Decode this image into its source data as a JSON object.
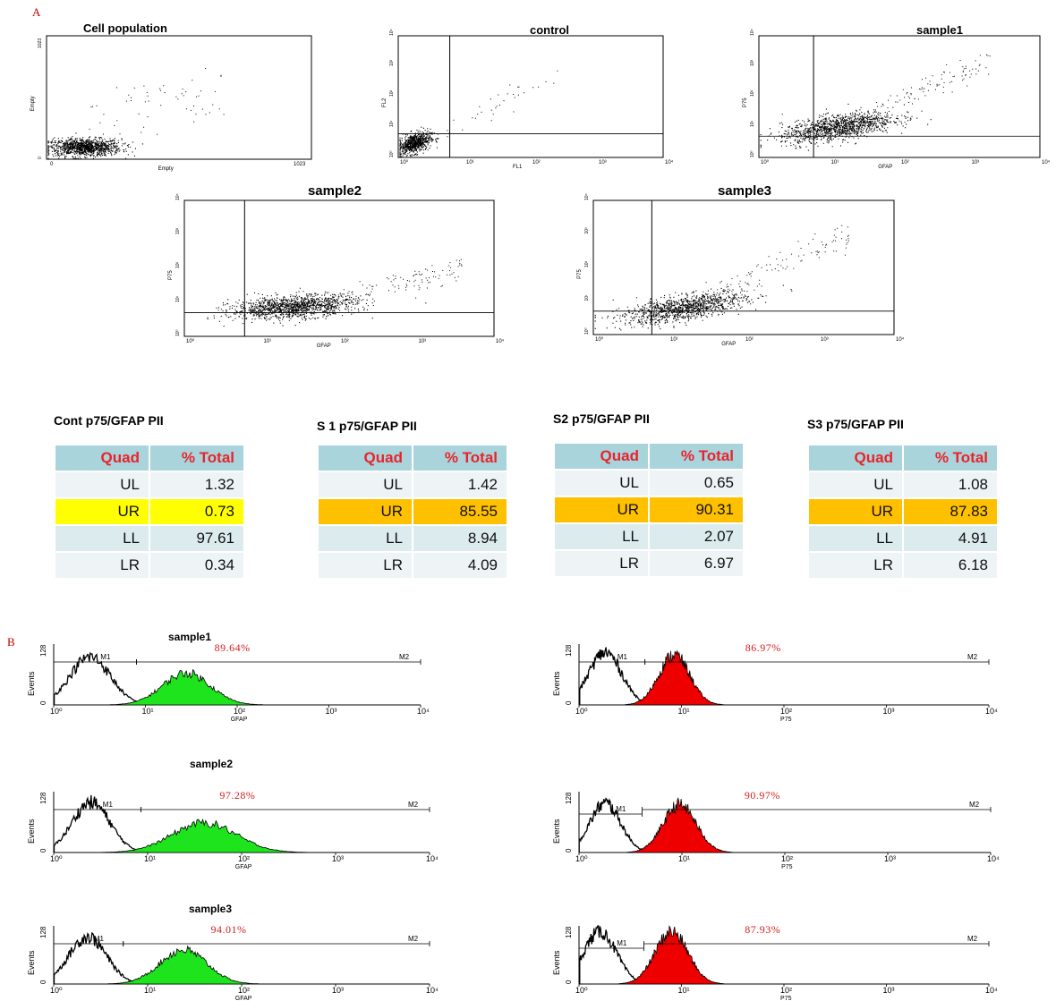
{
  "panel_labels": {
    "a": "A",
    "b": "B"
  },
  "colors": {
    "gfap_fill": "#1ee41e",
    "p75_fill": "#ee0000",
    "pct_text": "#d02020",
    "table_header_bg": "#a9d4dc",
    "table_header_text": "#e8242b",
    "ur_highlight_control": "#ffff00",
    "ur_highlight_samples": "#ffc000"
  },
  "chart_data": [
    {
      "type": "scatter",
      "title": "Cell population",
      "xlabel": "Empty",
      "ylabel": "Empty",
      "xlim": [
        0,
        1023
      ],
      "ylim": [
        0,
        1023
      ],
      "x_ticks": [
        "0",
        "1023"
      ],
      "y_ticks": [
        "0",
        "1023"
      ],
      "dense_cluster": {
        "x": [
          20,
          300
        ],
        "y": [
          40,
          200
        ]
      }
    },
    {
      "type": "scatter",
      "title": "control",
      "xlabel": "FL1",
      "ylabel": "FL2",
      "scale": "log",
      "xlim": [
        1,
        10000
      ],
      "ylim": [
        1,
        10000
      ],
      "x_ticks": [
        "10⁰",
        "10¹",
        "10²",
        "10³",
        "10⁴"
      ],
      "y_ticks": [
        "10⁰",
        "10¹",
        "10²",
        "10³",
        "10⁴"
      ],
      "quadrant_gate": {
        "x": 6,
        "y": 6
      }
    },
    {
      "type": "scatter",
      "title": "sample1",
      "xlabel": "GFAP",
      "ylabel": "P75",
      "scale": "log",
      "xlim": [
        1,
        10000
      ],
      "ylim": [
        1,
        10000
      ],
      "x_ticks": [
        "10⁰",
        "10¹",
        "10²",
        "10³",
        "10⁴"
      ],
      "y_ticks": [
        "10⁰",
        "10¹",
        "10²",
        "10³",
        "10⁴"
      ],
      "quadrant_gate": {
        "x": 6,
        "y": 5
      }
    },
    {
      "type": "scatter",
      "title": "sample2",
      "xlabel": "GFAP",
      "ylabel": "P75",
      "scale": "log",
      "xlim": [
        1,
        10000
      ],
      "ylim": [
        1,
        10000
      ],
      "x_ticks": [
        "10⁰",
        "10¹",
        "10²",
        "10³",
        "10⁴"
      ],
      "y_ticks": [
        "10⁰",
        "10¹",
        "10²",
        "10³",
        "10⁴"
      ],
      "quadrant_gate": {
        "x": 6,
        "y": 5
      }
    },
    {
      "type": "scatter",
      "title": "sample3",
      "xlabel": "GFAP",
      "ylabel": "P75",
      "scale": "log",
      "xlim": [
        1,
        10000
      ],
      "ylim": [
        1,
        10000
      ],
      "x_ticks": [
        "10⁰",
        "10¹",
        "10²",
        "10³",
        "10⁴"
      ],
      "y_ticks": [
        "10⁰",
        "10¹",
        "10²",
        "10³",
        "10⁴"
      ],
      "quadrant_gate": {
        "x": 6,
        "y": 5
      }
    },
    {
      "type": "table",
      "caption": "Cont p75/GFAP PII",
      "columns": [
        "Quad",
        "% Total"
      ],
      "rows": [
        [
          "UL",
          "1.32"
        ],
        [
          "UR",
          "0.73"
        ],
        [
          "LL",
          "97.61"
        ],
        [
          "LR",
          "0.34"
        ]
      ]
    },
    {
      "type": "table",
      "caption": "S 1 p75/GFAP PII",
      "columns": [
        "Quad",
        "% Total"
      ],
      "rows": [
        [
          "UL",
          "1.42"
        ],
        [
          "UR",
          "85.55"
        ],
        [
          "LL",
          "8.94"
        ],
        [
          "LR",
          "4.09"
        ]
      ]
    },
    {
      "type": "table",
      "caption": "S2 p75/GFAP PII",
      "columns": [
        "Quad",
        "% Total"
      ],
      "rows": [
        [
          "UL",
          "0.65"
        ],
        [
          "UR",
          "90.31"
        ],
        [
          "LL",
          "2.07"
        ],
        [
          "LR",
          "6.97"
        ]
      ]
    },
    {
      "type": "table",
      "caption": "S3 p75/GFAP PII",
      "columns": [
        "Quad",
        "% Total"
      ],
      "rows": [
        [
          "UL",
          "1.08"
        ],
        [
          "UR",
          "87.83"
        ],
        [
          "LL",
          "4.91"
        ],
        [
          "LR",
          "6.18"
        ]
      ]
    },
    {
      "type": "area",
      "title": "sample1",
      "xlabel": "GFAP",
      "ylabel": "Events",
      "scale": "log",
      "xlim": [
        1,
        10000
      ],
      "ylim": [
        0,
        128
      ],
      "x_ticks": [
        "10⁰",
        "10¹",
        "10²",
        "10³",
        "10⁴"
      ],
      "y_ticks": [
        "0",
        "128"
      ],
      "markers": [
        {
          "name": "M1",
          "from": 1,
          "to": 8
        },
        {
          "name": "M2",
          "from": 8,
          "to": 10000
        }
      ],
      "percent": "89.64%",
      "series": [
        {
          "fill": "none",
          "peak_x": 2.5,
          "peak_y": 105,
          "spread": 0.22
        },
        {
          "fill": "#1ee41e",
          "peak_x": 28,
          "peak_y": 70,
          "spread": 0.26
        }
      ]
    },
    {
      "type": "area",
      "title": "",
      "xlabel": "P75",
      "ylabel": "Events",
      "scale": "log",
      "xlim": [
        1,
        10000
      ],
      "ylim": [
        0,
        128
      ],
      "x_ticks": [
        "10⁰",
        "10¹",
        "10²",
        "10³",
        "10⁴"
      ],
      "y_ticks": [
        "0",
        "128"
      ],
      "markers": [
        {
          "name": "M1",
          "from": 1,
          "to": 4.4
        },
        {
          "name": "M2",
          "from": 4.4,
          "to": 10000
        }
      ],
      "percent": "86.97%",
      "series": [
        {
          "fill": "none",
          "peak_x": 1.8,
          "peak_y": 115,
          "spread": 0.16
        },
        {
          "fill": "#ee0000",
          "peak_x": 8.5,
          "peak_y": 110,
          "spread": 0.15
        }
      ]
    },
    {
      "type": "area",
      "title": "sample2",
      "xlabel": "GFAP",
      "ylabel": "Events",
      "scale": "log",
      "xlim": [
        1,
        10000
      ],
      "ylim": [
        0,
        128
      ],
      "x_ticks": [
        "10⁰",
        "10¹",
        "10²",
        "10³",
        "10⁴"
      ],
      "y_ticks": [
        "0",
        "128"
      ],
      "markers": [
        {
          "name": "M1",
          "from": 1,
          "to": 8.5
        },
        {
          "name": "M2",
          "from": 8.5,
          "to": 10000
        }
      ],
      "percent": "97.28%",
      "series": [
        {
          "fill": "none",
          "peak_x": 2.5,
          "peak_y": 110,
          "spread": 0.2
        },
        {
          "fill": "#1ee41e",
          "peak_x": 40,
          "peak_y": 65,
          "spread": 0.34
        }
      ]
    },
    {
      "type": "area",
      "title": "",
      "xlabel": "P75",
      "ylabel": "Events",
      "scale": "log",
      "xlim": [
        1,
        10000
      ],
      "ylim": [
        0,
        128
      ],
      "x_ticks": [
        "10⁰",
        "10¹",
        "10²",
        "10³",
        "10⁴"
      ],
      "y_ticks": [
        "0",
        "128"
      ],
      "markers": [
        {
          "name": "M1",
          "from": 1,
          "to": 4.1
        },
        {
          "name": "M2",
          "from": 4.1,
          "to": 10000
        }
      ],
      "percent": "90.97%",
      "series": [
        {
          "fill": "none",
          "peak_x": 1.8,
          "peak_y": 108,
          "spread": 0.15
        },
        {
          "fill": "#ee0000",
          "peak_x": 9.5,
          "peak_y": 105,
          "spread": 0.16
        }
      ]
    },
    {
      "type": "area",
      "title": "sample3",
      "xlabel": "GFAP",
      "ylabel": "Events",
      "scale": "log",
      "xlim": [
        1,
        10000
      ],
      "ylim": [
        0,
        128
      ],
      "x_ticks": [
        "10⁰",
        "10¹",
        "10²",
        "10³",
        "10⁴"
      ],
      "y_ticks": [
        "0",
        "128"
      ],
      "markers": [
        {
          "name": "M1",
          "from": 1,
          "to": 5.5
        },
        {
          "name": "M2",
          "from": 5.5,
          "to": 10000
        }
      ],
      "percent": "94.01%",
      "series": [
        {
          "fill": "none",
          "peak_x": 2.3,
          "peak_y": 108,
          "spread": 0.2
        },
        {
          "fill": "#1ee41e",
          "peak_x": 24,
          "peak_y": 78,
          "spread": 0.25
        }
      ]
    },
    {
      "type": "area",
      "title": "",
      "xlabel": "P75",
      "ylabel": "Events",
      "scale": "log",
      "xlim": [
        1,
        10000
      ],
      "ylim": [
        0,
        128
      ],
      "x_ticks": [
        "10⁰",
        "10¹",
        "10²",
        "10³",
        "10⁴"
      ],
      "y_ticks": [
        "0",
        "128"
      ],
      "markers": [
        {
          "name": "M1",
          "from": 1,
          "to": 4.3
        },
        {
          "name": "M2",
          "from": 4.3,
          "to": 10000
        }
      ],
      "percent": "87.93%",
      "series": [
        {
          "fill": "none",
          "peak_x": 1.6,
          "peak_y": 120,
          "spread": 0.16
        },
        {
          "fill": "#ee0000",
          "peak_x": 8,
          "peak_y": 120,
          "spread": 0.16
        }
      ]
    }
  ]
}
